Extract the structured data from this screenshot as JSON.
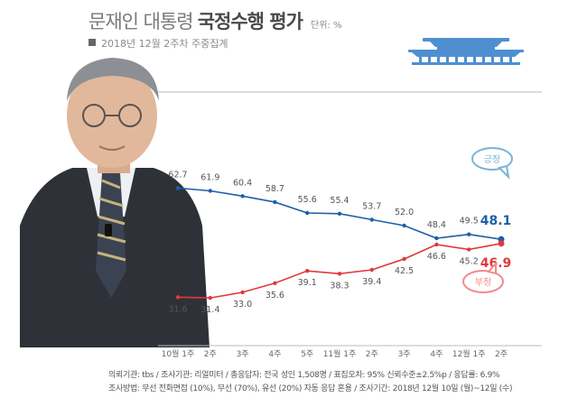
{
  "header": {
    "title_light": "문재인 대통령",
    "title_bold": "국정수행 평가",
    "unit": "단위: %",
    "subtitle": "2018년 12월 2주차 주중집계"
  },
  "footer": {
    "line1": "의뢰기관: tbs / 조사기관: 리얼미터 / 총응답자: 전국 성인 1,508명 / 표집오차: 95% 신뢰수준±2.5%p / 응답률: 6.9%",
    "line2": "조사방법: 무선 전화면접 (10%), 무선 (70%), 유선 (20%) 자동 응답 혼용 / 조사기간: 2018년 12월 10일 (월)~12일 (수)"
  },
  "colors": {
    "positive": "#1f5fa6",
    "negative": "#e0393e",
    "positive_bubble": "#7ab3d9",
    "negative_bubble": "#f08a8a",
    "axis": "#bbbbbb"
  },
  "chart_data": {
    "type": "line",
    "categories": [
      "10월 1주",
      "2주",
      "3주",
      "4주",
      "5주",
      "11월 1주",
      "2주",
      "3주",
      "4주",
      "12월 1주",
      "2주"
    ],
    "series": [
      {
        "name": "긍정",
        "values": [
          62.7,
          61.9,
          60.4,
          58.7,
          55.6,
          55.4,
          53.7,
          52.0,
          48.4,
          49.5,
          48.1
        ]
      },
      {
        "name": "부정",
        "values": [
          31.6,
          31.4,
          33.0,
          35.6,
          39.1,
          38.3,
          39.4,
          42.5,
          46.6,
          45.2,
          46.9
        ]
      }
    ],
    "ylim": [
      25,
      70
    ],
    "grid": false,
    "legend": "right"
  }
}
